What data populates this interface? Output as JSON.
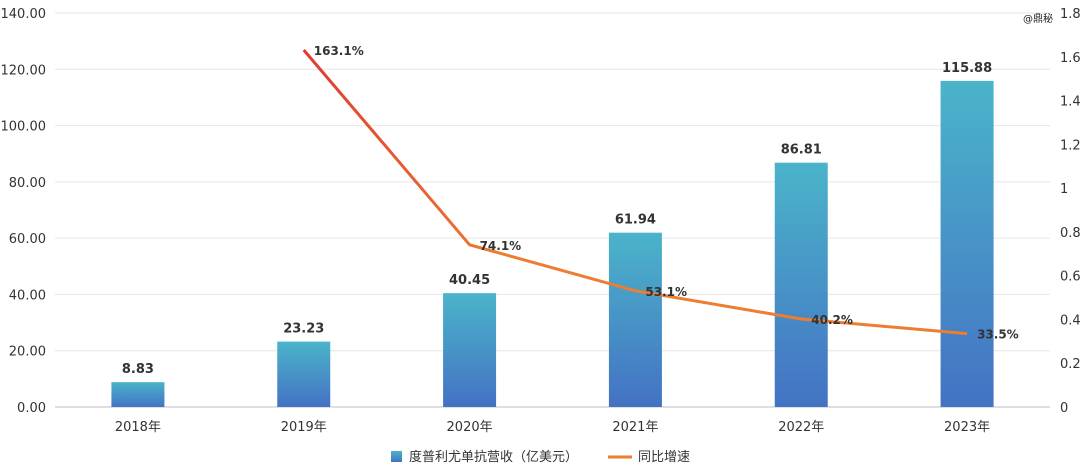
{
  "watermark": "@鼎秘",
  "chart_data": {
    "type": "bar",
    "categories": [
      "2018年",
      "2019年",
      "2020年",
      "2021年",
      "2022年",
      "2023年"
    ],
    "series": [
      {
        "name": "度普利尤单抗营收（亿美元）",
        "type": "bar",
        "axis": "left",
        "values": [
          8.83,
          23.23,
          40.45,
          61.94,
          86.81,
          115.88
        ],
        "labels": [
          "8.83",
          "23.23",
          "40.45",
          "61.94",
          "86.81",
          "115.88"
        ],
        "color_top": "#4AB4CA",
        "color_bottom": "#4472C4"
      },
      {
        "name": "同比增速",
        "type": "line",
        "axis": "right",
        "values": [
          null,
          1.631,
          0.741,
          0.531,
          0.402,
          0.335
        ],
        "labels": [
          "",
          "163.1%",
          "74.1%",
          "53.1%",
          "40.2%",
          "33.5%"
        ],
        "color_start": "#E03A2F",
        "color_end": "#ED7D31"
      }
    ],
    "left_axis": {
      "range": [
        0,
        140
      ],
      "ticks": [
        0,
        20,
        40,
        60,
        80,
        100,
        120,
        140
      ],
      "tick_labels": [
        "0.00",
        "20.00",
        "40.00",
        "60.00",
        "80.00",
        "100.00",
        "120.00",
        "140.00"
      ]
    },
    "right_axis": {
      "range": [
        0,
        1.8
      ],
      "ticks": [
        0,
        0.2,
        0.4,
        0.6,
        0.8,
        1,
        1.2,
        1.4,
        1.6,
        1.8
      ],
      "tick_labels": [
        "0",
        "0.2",
        "0.4",
        "0.6",
        "0.8",
        "1",
        "1.2",
        "1.4",
        "1.6",
        "1.8"
      ]
    },
    "grid": true,
    "legend_position": "bottom-center"
  }
}
